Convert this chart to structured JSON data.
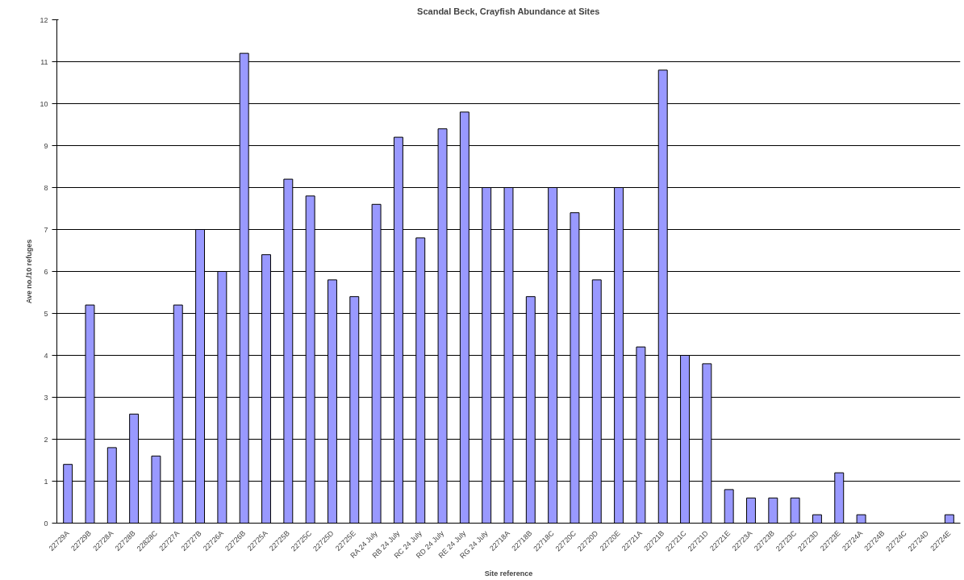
{
  "chart_data": {
    "type": "bar",
    "title": "Scandal Beck, Crayfish Abundance at Sites",
    "xlabel": "Site reference",
    "ylabel": "Ave no./10 refuges",
    "categories": [
      "22729A",
      "22729B",
      "22728A",
      "22728B",
      "22828C",
      "22727A",
      "22727B",
      "22726A",
      "22726B",
      "22725A",
      "22725B",
      "22725C",
      "22725D",
      "22725E",
      "RA 24 July",
      "RB 24 July",
      "RC 24 July",
      "RD 24 July",
      "RE 24 July",
      "RG 24 July",
      "22718A",
      "22718B",
      "22718C",
      "22720C",
      "22720D",
      "22720E",
      "22721A",
      "22721B",
      "22721C",
      "22721D",
      "22721E",
      "22723A",
      "22723B",
      "22723C",
      "22723D",
      "22723E",
      "22724A",
      "22724B",
      "22724C",
      "22724D",
      "22724E"
    ],
    "values": [
      1.4,
      5.2,
      1.8,
      2.6,
      1.6,
      5.2,
      7,
      6,
      11.2,
      6.4,
      8.2,
      7.8,
      5.8,
      5.4,
      7.6,
      9.2,
      6.8,
      9.4,
      9.8,
      8,
      8,
      5.4,
      8,
      7.4,
      5.8,
      8,
      4.2,
      10.8,
      4,
      3.8,
      0.8,
      0.6,
      0.6,
      0.6,
      0.2,
      1.2,
      0.2,
      0,
      0,
      0,
      0.2
    ],
    "color": "#9999ff",
    "ylim": [
      0,
      12
    ],
    "yticks": [
      0,
      1,
      2,
      3,
      4,
      5,
      6,
      7,
      8,
      9,
      10,
      11,
      12
    ],
    "grid": "y"
  }
}
